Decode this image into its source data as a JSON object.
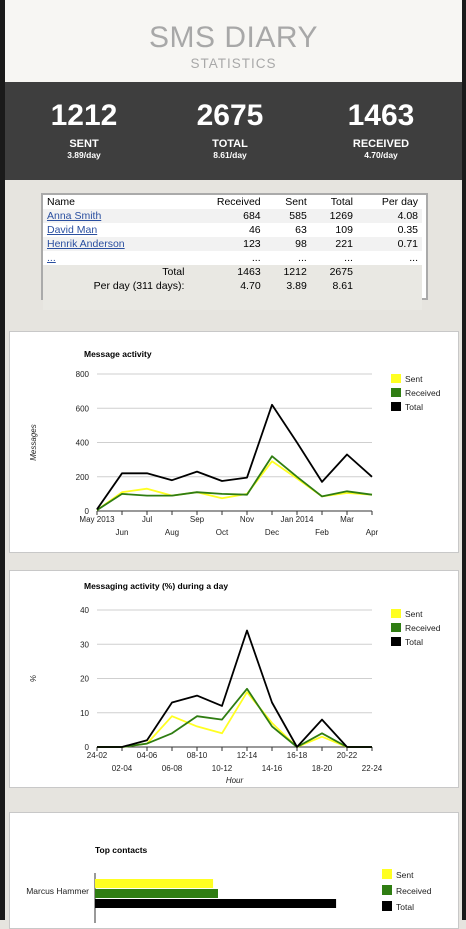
{
  "header": {
    "title": "SMS DIARY",
    "subtitle": "STATISTICS"
  },
  "summary": {
    "sent": {
      "value": "1212",
      "label": "SENT",
      "rate": "3.89/day"
    },
    "total": {
      "value": "2675",
      "label": "TOTAL",
      "rate": "8.61/day"
    },
    "received": {
      "value": "1463",
      "label": "RECEIVED",
      "rate": "4.70/day"
    }
  },
  "contacts_table": {
    "headers": [
      "Name",
      "Received",
      "Sent",
      "Total",
      "Per day"
    ],
    "rows": [
      {
        "name": "Anna Smith",
        "received": "684",
        "sent": "585",
        "total": "1269",
        "per_day": "4.08"
      },
      {
        "name": "David Man",
        "received": "46",
        "sent": "63",
        "total": "109",
        "per_day": "0.35"
      },
      {
        "name": "Henrik Anderson",
        "received": "123",
        "sent": "98",
        "total": "221",
        "per_day": "0.71"
      },
      {
        "name": "...",
        "received": "...",
        "sent": "...",
        "total": "...",
        "per_day": "..."
      }
    ],
    "total_row": {
      "label": "Total",
      "received": "1463",
      "sent": "1212",
      "total": "2675"
    },
    "perday_row": {
      "label": "Per day (311 days):",
      "received": "4.70",
      "sent": "3.89",
      "total": "8.61"
    }
  },
  "colors": {
    "sent": "#ffff22",
    "received": "#2f7d12",
    "total": "#000000"
  },
  "chart_data": [
    {
      "type": "line",
      "title": "Message activity",
      "xlabel": "",
      "ylabel": "Messages",
      "ylim": [
        0,
        800
      ],
      "yticks": [
        0,
        200,
        400,
        600,
        800
      ],
      "x": [
        "May 2013",
        "Jun",
        "Jul",
        "Aug",
        "Sep",
        "Oct",
        "Nov",
        "Dec",
        "Jan 2014",
        "Feb",
        "Mar",
        "Apr"
      ],
      "series": [
        {
          "name": "Sent",
          "values": [
            5,
            110,
            130,
            90,
            110,
            75,
            100,
            290,
            190,
            85,
            105,
            95
          ]
        },
        {
          "name": "Received",
          "values": [
            5,
            100,
            90,
            90,
            110,
            100,
            95,
            320,
            200,
            85,
            115,
            95
          ]
        },
        {
          "name": "Total",
          "values": [
            10,
            220,
            220,
            180,
            230,
            175,
            195,
            620,
            400,
            170,
            330,
            200
          ]
        }
      ],
      "legend": "right"
    },
    {
      "type": "line",
      "title": "Messaging activity (%) during a day",
      "xlabel": "Hour",
      "ylabel": "%",
      "ylim": [
        0,
        40
      ],
      "yticks": [
        0,
        10,
        20,
        30,
        40
      ],
      "x": [
        "00-02",
        "02-04",
        "04-06",
        "06-08",
        "08-10",
        "10-12",
        "12-14",
        "14-16",
        "16-18",
        "18-20",
        "20-22",
        "22-24"
      ],
      "x_tick_labels": [
        "24-02",
        "02-04",
        "04-06",
        "06-08",
        "08-10",
        "10-12",
        "12-14",
        "14-16",
        "16-18",
        "18-20",
        "20-22",
        "22-24"
      ],
      "series": [
        {
          "name": "Sent",
          "values": [
            0,
            0,
            1,
            9,
            6,
            4,
            16,
            7,
            0,
            3,
            0,
            0
          ]
        },
        {
          "name": "Received",
          "values": [
            0,
            0,
            1,
            4,
            9,
            8,
            17,
            6,
            0,
            4,
            0,
            0
          ]
        },
        {
          "name": "Total",
          "values": [
            0,
            0,
            2,
            13,
            15,
            12,
            34,
            13,
            0,
            8,
            0,
            0
          ]
        }
      ],
      "legend": "right"
    },
    {
      "type": "bar",
      "title": "Top contacts",
      "categories": [
        "Marcus Hammer"
      ],
      "series": [
        {
          "name": "Sent",
          "values": [
            120
          ]
        },
        {
          "name": "Received",
          "values": [
            125
          ]
        },
        {
          "name": "Total",
          "values": [
            245
          ]
        }
      ],
      "orientation": "horizontal",
      "legend": "right"
    }
  ]
}
